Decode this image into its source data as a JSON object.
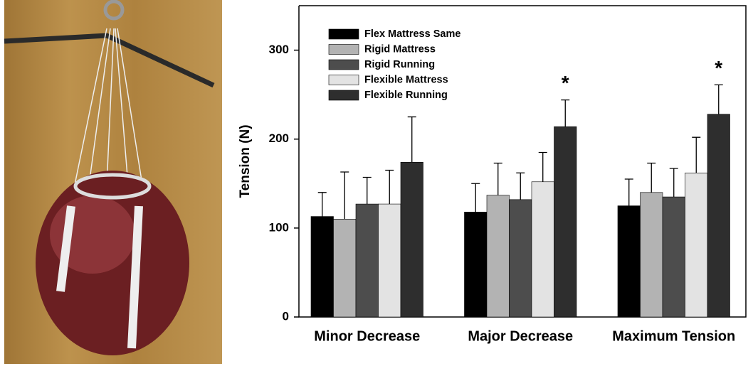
{
  "chart_data": {
    "type": "bar",
    "y_label": "Tension (N)",
    "categories": [
      "Minor Decrease",
      "Major Decrease",
      "Maximum Tension"
    ],
    "series": [
      {
        "name": "Flex Mattress Same",
        "color": "#000000",
        "values": [
          113,
          118,
          125
        ],
        "errors": [
          27,
          32,
          30
        ]
      },
      {
        "name": "Rigid Mattress",
        "color": "#b3b3b3",
        "values": [
          110,
          137,
          140
        ],
        "errors": [
          53,
          36,
          33
        ]
      },
      {
        "name": "Rigid Running",
        "color": "#4d4d4d",
        "values": [
          127,
          132,
          135
        ],
        "errors": [
          30,
          30,
          32
        ]
      },
      {
        "name": "Flexible Mattress",
        "color": "#e3e3e3",
        "values": [
          127,
          152,
          162
        ],
        "errors": [
          38,
          33,
          40
        ]
      },
      {
        "name": "Flexible Running",
        "color": "#2e2e2e",
        "values": [
          174,
          214,
          228
        ],
        "errors": [
          51,
          30,
          33
        ]
      }
    ],
    "annotations": [
      null,
      "*",
      "*"
    ],
    "ylim": [
      0,
      350
    ],
    "yticks": [
      0,
      100,
      200,
      300
    ],
    "legend": "upper left"
  }
}
